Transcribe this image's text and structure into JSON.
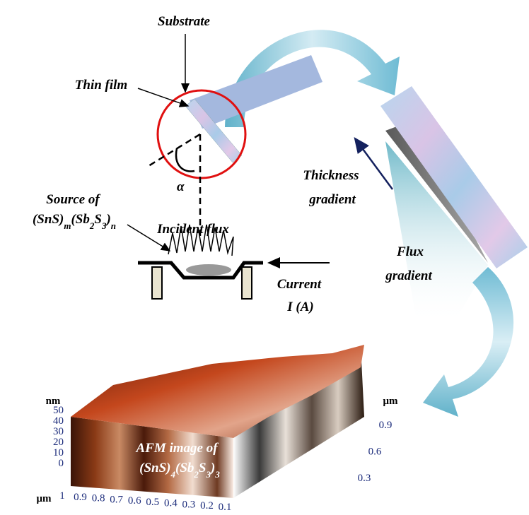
{
  "labels": {
    "substrate": "Substrate",
    "thin_film": "Thin film",
    "alpha": "α",
    "thickness_gradient": [
      "Thickness",
      "gradient"
    ],
    "source": "Source of",
    "source_formula": [
      "(SnS)",
      "m",
      "(Sb",
      "2",
      "S",
      "3",
      ")",
      "n"
    ],
    "incident_flux": "Incident flux",
    "current": [
      "Current",
      "I (A)"
    ],
    "flux_gradient": [
      "Flux",
      "gradient"
    ]
  },
  "afm": {
    "z_unit": "nm",
    "z_ticks": [
      "50",
      "40",
      "30",
      "20",
      "10",
      "0"
    ],
    "x_unit": "μm",
    "x_ticks": [
      "1",
      "0.9",
      "0.8",
      "0.7",
      "0.6",
      "0.5",
      "0.4",
      "0.3",
      "0.2",
      "0.1"
    ],
    "y_unit": "μm",
    "y_ticks": [
      "0.9",
      "0.6",
      "0.3"
    ],
    "caption": "AFM image of",
    "formula": [
      "(SnS)",
      "4",
      "(Sb",
      "2",
      "S",
      "3",
      ")",
      "3"
    ]
  }
}
